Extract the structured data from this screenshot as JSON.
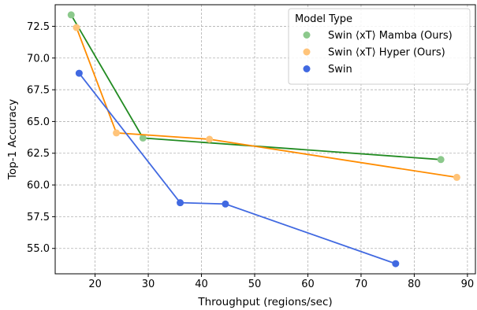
{
  "chart_data": {
    "type": "line",
    "xlabel": "Throughput (regions/sec)",
    "ylabel": "Top-1 Accuracy",
    "xlim": [
      12.5,
      91.5
    ],
    "ylim": [
      53.0,
      74.2
    ],
    "xticks": [
      20,
      30,
      40,
      50,
      60,
      70,
      80,
      90
    ],
    "yticks": [
      55.0,
      57.5,
      60.0,
      62.5,
      65.0,
      67.5,
      70.0,
      72.5
    ],
    "grid": true,
    "legend": {
      "title": "Model Type",
      "position": "top-right"
    },
    "series": [
      {
        "name": "Swin ⟨xT⟩ Mamba (Ours)",
        "line_color": "#228B22",
        "marker_color": "#8cc98c",
        "points": [
          [
            15.5,
            73.4
          ],
          [
            29.0,
            63.7
          ],
          [
            85.0,
            62.0
          ]
        ]
      },
      {
        "name": "Swin ⟨xT⟩ Hyper (Ours)",
        "line_color": "#ff8c00",
        "marker_color": "#ffc47a",
        "points": [
          [
            16.5,
            72.4
          ],
          [
            24.0,
            64.1
          ],
          [
            41.5,
            63.6
          ],
          [
            88.0,
            60.6
          ]
        ]
      },
      {
        "name": "Swin",
        "line_color": "#4169e1",
        "marker_color": "#4169e1",
        "points": [
          [
            17.0,
            68.8
          ],
          [
            36.0,
            58.6
          ],
          [
            44.5,
            58.5
          ],
          [
            76.5,
            53.8
          ]
        ]
      }
    ]
  }
}
